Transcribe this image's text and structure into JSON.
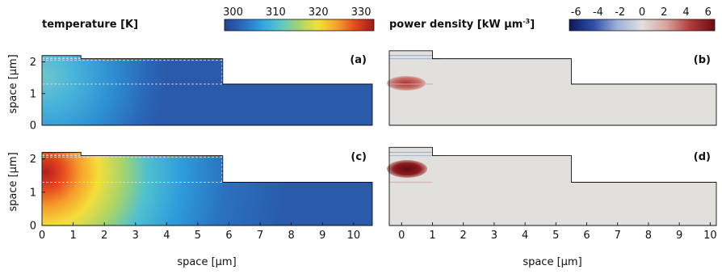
{
  "chart_data": [
    {
      "type": "heatmap",
      "panel": "(a)",
      "title": "temperature [K]",
      "colorbar": {
        "ticks": [
          "300",
          "310",
          "320",
          "330"
        ],
        "range": [
          298,
          333
        ]
      },
      "xlabel": "",
      "ylabel": "space [µm]",
      "xlim": [
        0,
        10.6
      ],
      "ylim": [
        0,
        2.6
      ],
      "yticks": [
        "0",
        "1",
        "2"
      ],
      "structure_heights": [
        2.2,
        2.1,
        1.3
      ],
      "structure_widths": [
        1.25,
        5.8,
        10.6
      ],
      "peak_value": 307
    },
    {
      "type": "heatmap",
      "panel": "(b)",
      "title": "power density [kW µm⁻³]",
      "title_main": "power density [kW µm",
      "title_sup": "-3",
      "title_end": "]",
      "colorbar": {
        "ticks": [
          "-6",
          "-4",
          "-2",
          "0",
          "2",
          "4",
          "6"
        ],
        "range": [
          -6.6,
          6.6
        ]
      },
      "xlim": [
        -0.4,
        10.2
      ],
      "ylim": [
        0,
        2.6
      ],
      "structure_widths": [
        1.0,
        5.5,
        10.2
      ],
      "peak_value": 4
    },
    {
      "type": "heatmap",
      "panel": "(c)",
      "xlabel": "space [µm]",
      "ylabel": "space [µm]",
      "xlim": [
        0,
        10.6
      ],
      "ylim": [
        0,
        2.6
      ],
      "xticks": [
        "0",
        "1",
        "2",
        "3",
        "4",
        "5",
        "6",
        "7",
        "8",
        "9",
        "10"
      ],
      "yticks": [
        "0",
        "1",
        "2"
      ],
      "structure_heights": [
        2.2,
        2.1,
        1.3
      ],
      "structure_widths": [
        1.25,
        5.8,
        10.6
      ],
      "peak_value": 333
    },
    {
      "type": "heatmap",
      "panel": "(d)",
      "xlabel": "space [µm]",
      "xlim": [
        -0.4,
        10.2
      ],
      "ylim": [
        0,
        2.6
      ],
      "xticks": [
        "0",
        "1",
        "2",
        "3",
        "4",
        "5",
        "6",
        "7",
        "8",
        "9",
        "10"
      ],
      "structure_widths": [
        1.0,
        5.5,
        10.2
      ],
      "peak_value": 6.5
    }
  ],
  "colors": {
    "temp_map": [
      "#26418f",
      "#2a6cc0",
      "#2fa4e0",
      "#5cc7c9",
      "#a8d36a",
      "#f2e13a",
      "#f7a22a",
      "#e5481e",
      "#9d1a1a"
    ],
    "power_map": [
      "#0b1860",
      "#2f4fa8",
      "#9fb3d8",
      "#e2e0dd",
      "#d9a3a0",
      "#b23a3a",
      "#6a0e12"
    ],
    "power_bg": "#e2e0dd",
    "dashed_line": "#dddddd"
  }
}
